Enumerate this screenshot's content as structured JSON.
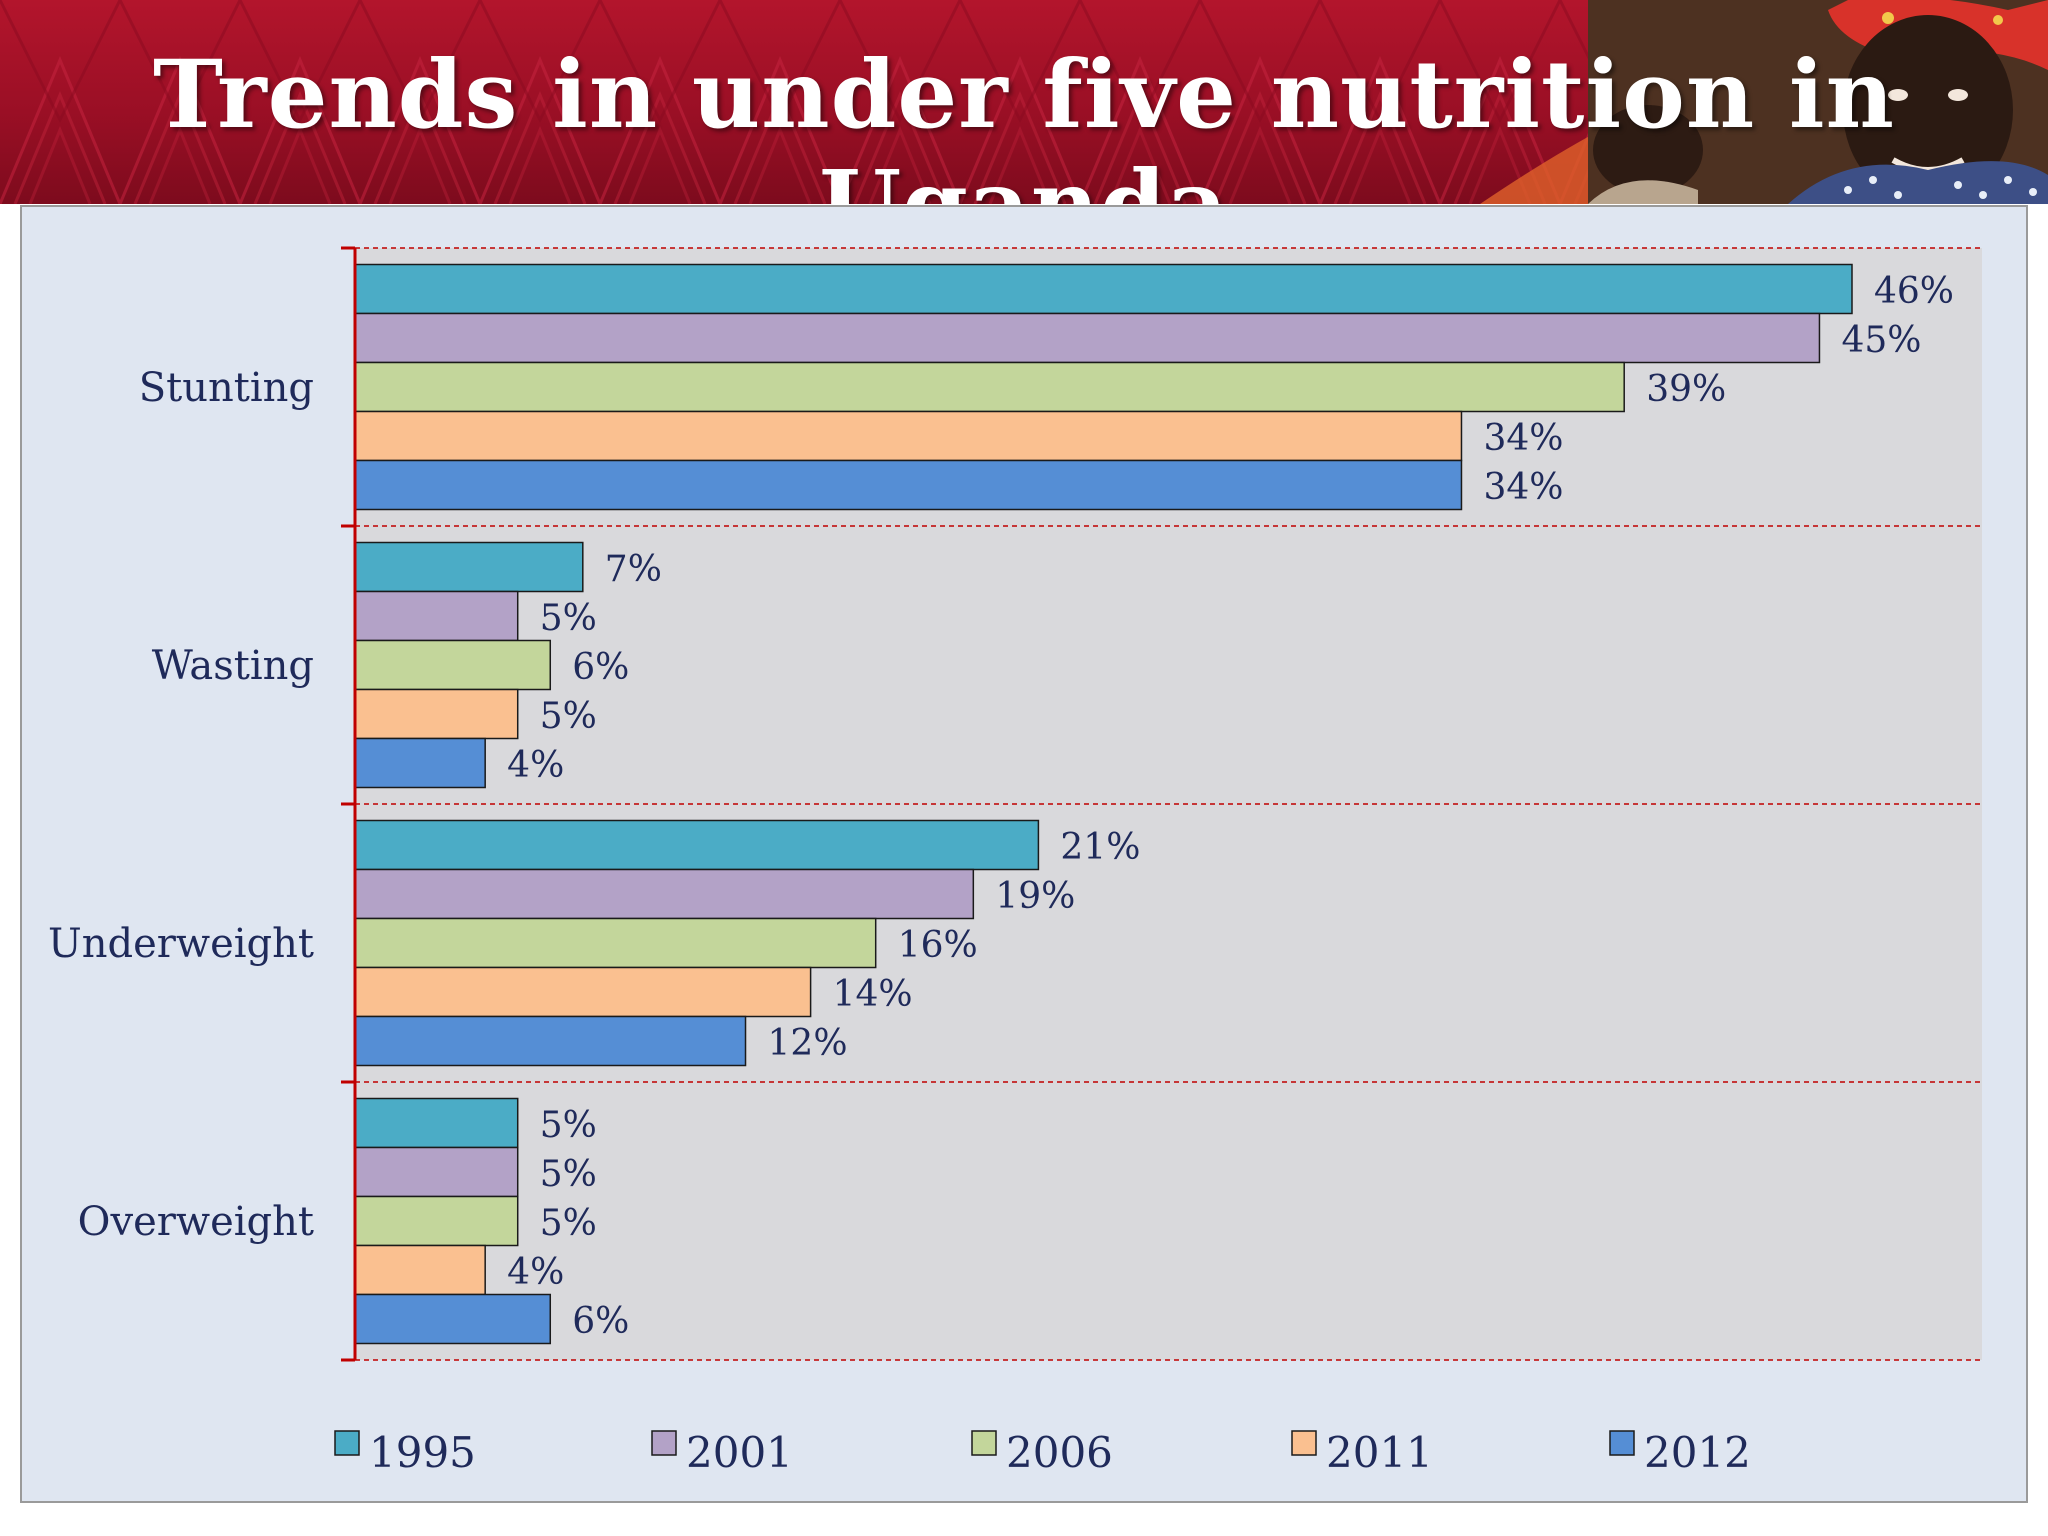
{
  "slide": {
    "title": "Trends in under five nutrition in Uganda"
  },
  "chart_data": {
    "type": "bar",
    "orientation": "horizontal",
    "categories": [
      "Stunting",
      "Wasting",
      "Underweight",
      "Overweight"
    ],
    "series": [
      {
        "name": "1995",
        "color": "#4bacc6",
        "values": [
          46,
          7,
          21,
          5
        ],
        "labels": [
          "46%",
          "7%",
          "21%",
          "5%"
        ]
      },
      {
        "name": "2001",
        "color": "#b3a2c7",
        "values": [
          45,
          5,
          19,
          5
        ],
        "labels": [
          "45%",
          "5%",
          "19%",
          "5%"
        ]
      },
      {
        "name": "2006",
        "color": "#c3d69b",
        "values": [
          39,
          6,
          16,
          5
        ],
        "labels": [
          "39%",
          "6%",
          "16%",
          "5%"
        ]
      },
      {
        "name": "2011",
        "color": "#fac090",
        "values": [
          34,
          5,
          14,
          4
        ],
        "labels": [
          "34%",
          "5%",
          "14%",
          "4%"
        ]
      },
      {
        "name": "2012",
        "color": "#558ed5",
        "values": [
          34,
          4,
          12,
          6
        ],
        "labels": [
          "34%",
          "4%",
          "12%",
          "6%"
        ]
      }
    ],
    "xlim": [
      0,
      50
    ],
    "grid": "dashed separators between groups",
    "legend_position": "bottom"
  },
  "colors": {
    "banner": "#9a0f25",
    "plot_area": "#d9d9dc",
    "chart_background": "#dfe6f1",
    "axis": "#c00000",
    "label_text": "#1f2a5a"
  }
}
